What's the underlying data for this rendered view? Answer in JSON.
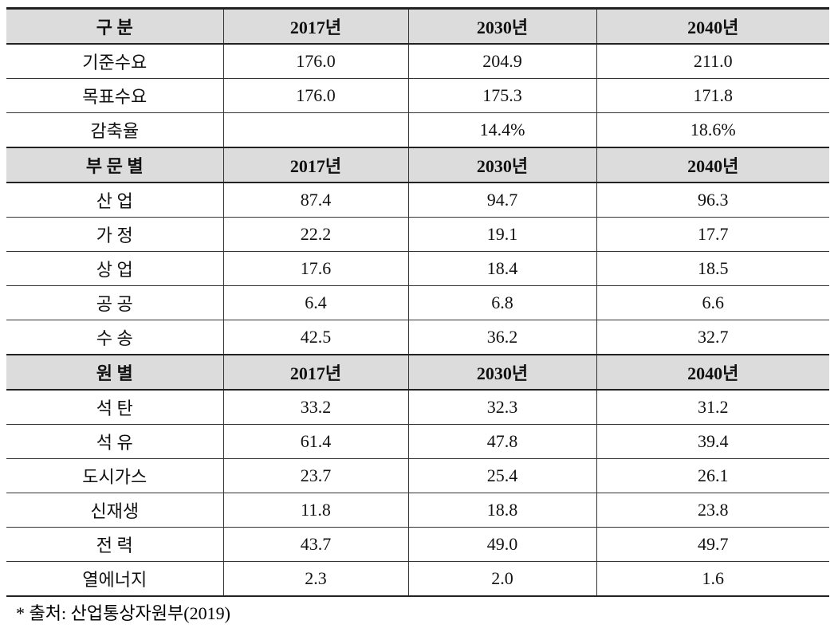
{
  "sections": [
    {
      "header": [
        "구 분",
        "2017년",
        "2030년",
        "2040년"
      ],
      "rows": [
        [
          "기준수요",
          "176.0",
          "204.9",
          "211.0"
        ],
        [
          "목표수요",
          "176.0",
          "175.3",
          "171.8"
        ],
        [
          "감축율",
          null,
          "14.4%",
          "18.6%"
        ]
      ]
    },
    {
      "header": [
        "부 문 별",
        "2017년",
        "2030년",
        "2040년"
      ],
      "rows": [
        [
          "산 업",
          "87.4",
          "94.7",
          "96.3"
        ],
        [
          "가 정",
          "22.2",
          "19.1",
          "17.7"
        ],
        [
          "상 업",
          "17.6",
          "18.4",
          "18.5"
        ],
        [
          "공 공",
          "6.4",
          "6.8",
          "6.6"
        ],
        [
          "수 송",
          "42.5",
          "36.2",
          "32.7"
        ]
      ]
    },
    {
      "header": [
        "원 별",
        "2017년",
        "2030년",
        "2040년"
      ],
      "rows": [
        [
          "석 탄",
          "33.2",
          "32.3",
          "31.2"
        ],
        [
          "석 유",
          "61.4",
          "47.8",
          "39.4"
        ],
        [
          "도시가스",
          "23.7",
          "25.4",
          "26.1"
        ],
        [
          "신재생",
          "11.8",
          "18.8",
          "23.8"
        ],
        [
          "전 력",
          "43.7",
          "49.0",
          "49.7"
        ],
        [
          "열에너지",
          "2.3",
          "2.0",
          "1.6"
        ]
      ]
    }
  ],
  "note": "* 출처: 산업통상자원부(2019)"
}
